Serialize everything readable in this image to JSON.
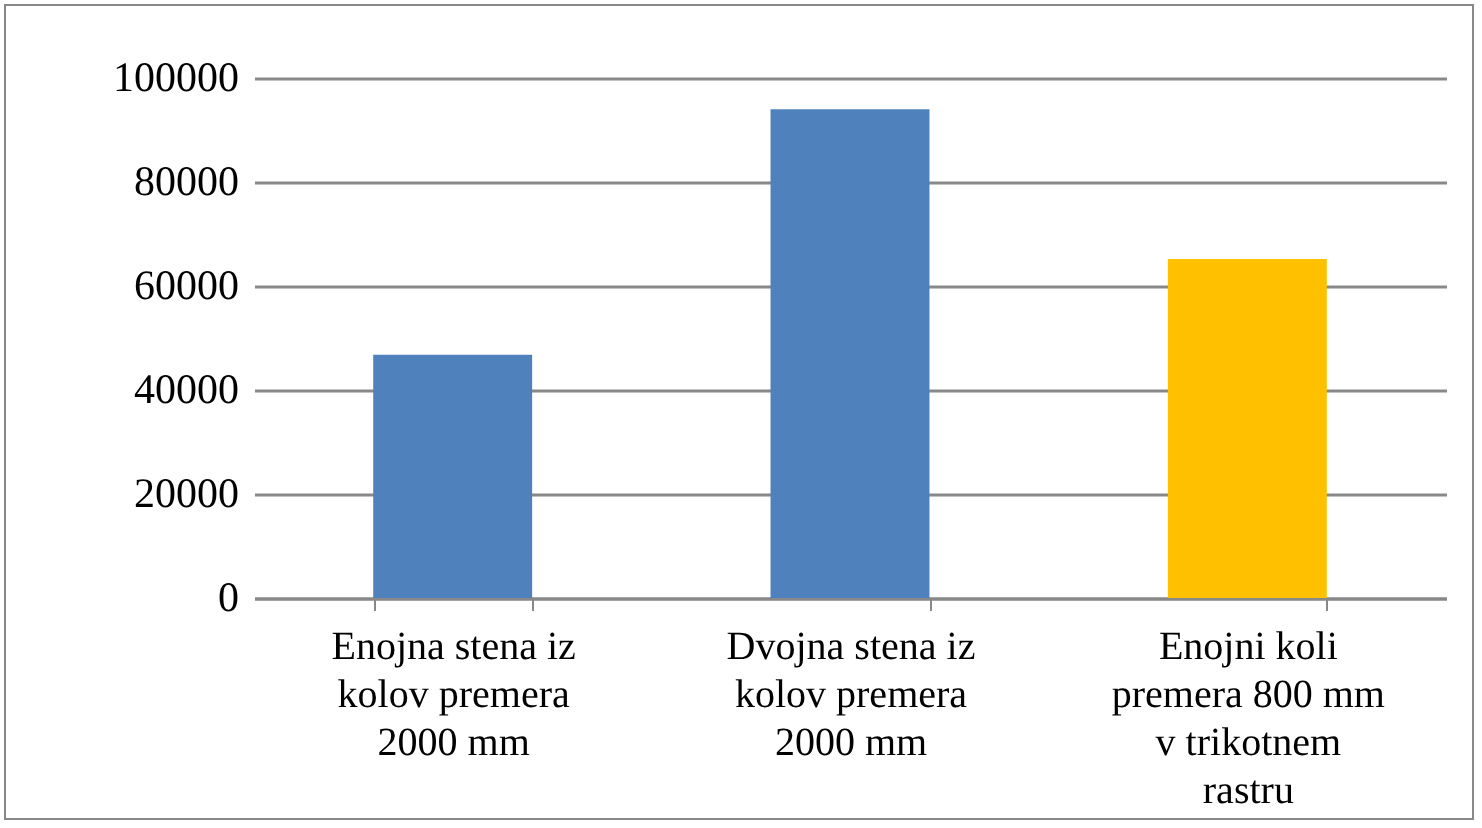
{
  "chart_data": {
    "type": "bar",
    "categories": [
      "Enojna stena iz kolov premera 2000 mm",
      "Dvojna stena iz kolov premera 2000 mm",
      "Enojni koli premera 800 mm v trikotnem rastru"
    ],
    "values": [
      46800,
      94000,
      65200
    ],
    "colors": [
      "#4f81bd",
      "#4f81bd",
      "#ffc000"
    ],
    "ylim": [
      0,
      100000
    ],
    "yticks": [
      0,
      20000,
      40000,
      60000,
      80000,
      100000
    ],
    "grid": "y"
  }
}
